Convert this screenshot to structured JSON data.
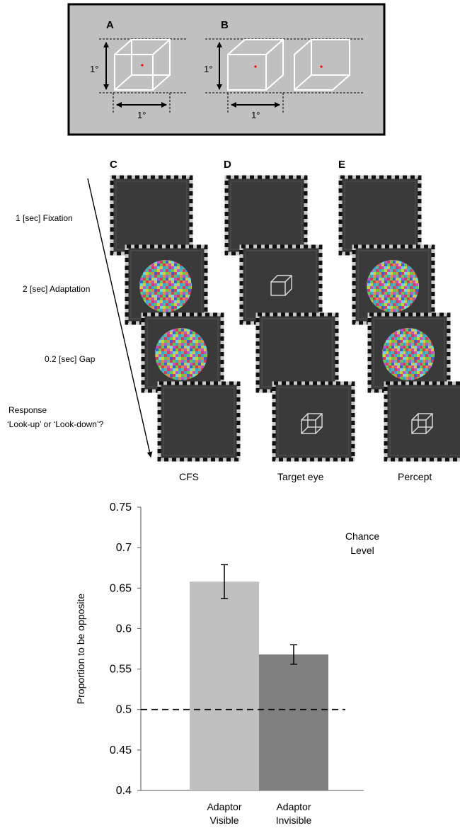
{
  "panels": {
    "A": "A",
    "B": "B",
    "C": "C",
    "D": "D",
    "E": "E"
  },
  "size_labels": {
    "a_vertical": "1°",
    "a_horizontal": "1°",
    "b_vertical": "1°",
    "b_horizontal": "1°"
  },
  "timeline": {
    "steps": [
      "1 [sec] Fixation",
      "2 [sec] Adaptation",
      "0.2 [sec] Gap"
    ],
    "response_line1": "Response",
    "response_line2": "‘Look-up’ or ‘Look-down’?"
  },
  "column_labels": {
    "cfs": "CFS",
    "target_eye": "Target eye",
    "percept": "Percept"
  },
  "colors": {
    "panel_bg": "#c0c0c0",
    "screen": "#3a3a3a",
    "fixation": "#ff0000",
    "bar_visible": "#c0c0c0",
    "bar_invisible": "#808080"
  },
  "chart_data": {
    "type": "bar",
    "categories": [
      "Adaptor Visible",
      "Adaptor Invisible"
    ],
    "category_lines": [
      [
        "Adaptor",
        "Visible"
      ],
      [
        "Adaptor",
        "Invisible"
      ]
    ],
    "values": [
      0.658,
      0.568
    ],
    "errors": [
      0.021,
      0.012
    ],
    "ylabel": "Proportion to be opposite",
    "ylim": [
      0.4,
      0.75
    ],
    "yticks": [
      "0.75",
      "0.7",
      "0.65",
      "0.6",
      "0.55",
      "0.5",
      "0.45",
      "0.4"
    ],
    "chance_level": 0.5,
    "chance_label_line1": "Chance",
    "chance_label_line2": "Level"
  }
}
